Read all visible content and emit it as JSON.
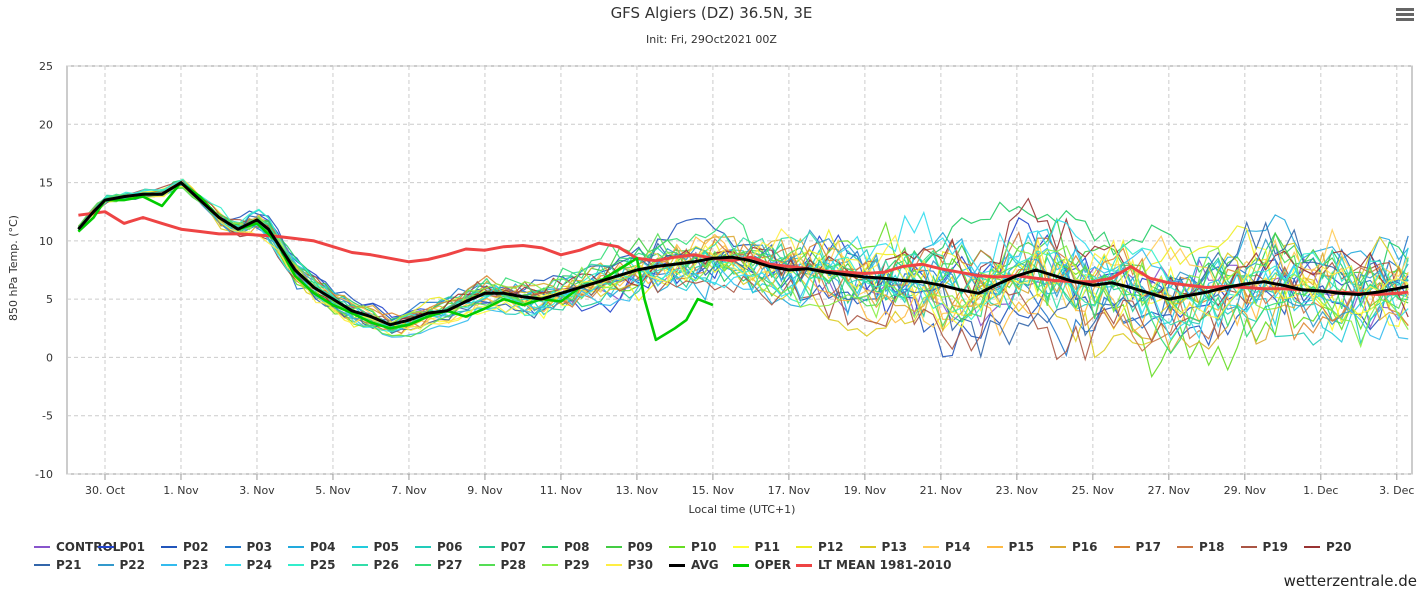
{
  "header": {
    "title": "GFS Algiers (DZ) 36.5N, 3E",
    "subtitle": "Init: Fri, 29Oct2021 00Z"
  },
  "menu_icon": "hamburger-menu-icon",
  "credit": "wetterzentrale.de",
  "colors": {
    "AVG": "#000000",
    "OPER": "#00cc00",
    "LT_MEAN": "#ee4444",
    "grid": "#cccccc"
  },
  "chart_data": {
    "type": "line",
    "xlabel": "Local time (UTC+1)",
    "ylabel": "850 hPa Temp. (°C)",
    "ylim": [
      -10,
      25
    ],
    "yticks": [
      -10,
      -5,
      0,
      5,
      10,
      15,
      20,
      25
    ],
    "xlim_days_from_oct29": [
      0.0,
      35.4
    ],
    "xticks": [
      {
        "label": "30. Oct",
        "day": 1
      },
      {
        "label": "1. Nov",
        "day": 3
      },
      {
        "label": "3. Nov",
        "day": 5
      },
      {
        "label": "5. Nov",
        "day": 7
      },
      {
        "label": "7. Nov",
        "day": 9
      },
      {
        "label": "9. Nov",
        "day": 11
      },
      {
        "label": "11. Nov",
        "day": 13
      },
      {
        "label": "13. Nov",
        "day": 15
      },
      {
        "label": "15. Nov",
        "day": 17
      },
      {
        "label": "17. Nov",
        "day": 19
      },
      {
        "label": "19. Nov",
        "day": 21
      },
      {
        "label": "21. Nov",
        "day": 23
      },
      {
        "label": "23. Nov",
        "day": 25
      },
      {
        "label": "25. Nov",
        "day": 27
      },
      {
        "label": "27. Nov",
        "day": 29
      },
      {
        "label": "29. Nov",
        "day": 31
      },
      {
        "label": "1. Dec",
        "day": 33
      },
      {
        "label": "3. Dec",
        "day": 35
      }
    ],
    "grid": true,
    "legend_position": "bottom",
    "series_highlight": [
      {
        "name": "AVG",
        "color": "#000000",
        "x": [
          0.3,
          0.7,
          1,
          1.5,
          2,
          2.5,
          3,
          3.5,
          4,
          4.5,
          5,
          5.3,
          5.7,
          6,
          6.5,
          7,
          7.5,
          8,
          8.5,
          9,
          9.5,
          10,
          10.5,
          11,
          11.5,
          12,
          12.5,
          13,
          13.5,
          14,
          14.5,
          15,
          15.5,
          16,
          16.5,
          17,
          17.5,
          18,
          18.5,
          19,
          19.5,
          20,
          20.5,
          21,
          21.5,
          22,
          22.5,
          23,
          23.5,
          24,
          24.5,
          25,
          25.5,
          26,
          26.5,
          27,
          27.5,
          28,
          28.5,
          29,
          29.5,
          30,
          30.5,
          31,
          31.5,
          32,
          32.5,
          33,
          33.5,
          34,
          34.5,
          35,
          35.3
        ],
        "y": [
          11,
          12.5,
          13.5,
          13.8,
          14,
          14,
          15,
          13.5,
          12,
          11,
          11.8,
          11,
          9,
          7.5,
          6,
          5,
          4,
          3.5,
          2.8,
          3.2,
          3.8,
          4,
          4.8,
          5.5,
          5.5,
          5.2,
          5,
          5.5,
          6,
          6.5,
          7,
          7.5,
          7.8,
          8,
          8.2,
          8.5,
          8.6,
          8.3,
          7.8,
          7.5,
          7.6,
          7.3,
          7.1,
          6.9,
          6.8,
          6.6,
          6.5,
          6.2,
          5.8,
          5.5,
          6.3,
          7,
          7.5,
          7,
          6.5,
          6.2,
          6.4,
          6,
          5.5,
          5,
          5.3,
          5.6,
          6,
          6.3,
          6.5,
          6.2,
          5.8,
          5.7,
          5.5,
          5.4,
          5.6,
          5.9,
          6.1
        ]
      },
      {
        "name": "OPER",
        "color": "#00cc00",
        "x": [
          0.3,
          0.7,
          1,
          1.5,
          2,
          2.5,
          3,
          3.5,
          4,
          4.5,
          5,
          5.5,
          6,
          6.5,
          7,
          7.5,
          8,
          8.5,
          9,
          9.5,
          10,
          10.5,
          11,
          11.5,
          12,
          12.5,
          13,
          13.5,
          14,
          14.5,
          15,
          15.2,
          15.5,
          16,
          16.3,
          16.6,
          17
        ],
        "y": [
          10.8,
          12,
          13.5,
          13.5,
          13.8,
          13,
          15,
          13.8,
          12,
          11,
          11.5,
          10,
          7,
          5.5,
          4.5,
          3.8,
          3,
          2.5,
          2.8,
          3.5,
          4,
          3.5,
          4.2,
          5,
          4.5,
          5,
          4.8,
          6,
          6.5,
          7.5,
          8.5,
          5,
          1.5,
          2.5,
          3.2,
          5,
          4.5
        ]
      },
      {
        "name": "LT MEAN 1981-2010",
        "color": "#ee4444",
        "x": [
          0.3,
          1,
          1.5,
          2,
          2.5,
          3,
          3.5,
          4,
          4.5,
          5,
          5.5,
          6,
          6.5,
          7,
          7.5,
          8,
          8.5,
          9,
          9.5,
          10,
          10.5,
          11,
          11.5,
          12,
          12.5,
          13,
          13.5,
          14,
          14.5,
          15,
          15.5,
          16,
          16.5,
          17,
          17.5,
          18,
          18.5,
          19,
          19.5,
          20,
          20.5,
          21,
          21.5,
          22,
          22.5,
          23,
          23.5,
          24,
          24.5,
          25,
          25.5,
          26,
          26.5,
          27,
          27.5,
          28,
          28.5,
          29,
          29.5,
          30,
          30.5,
          31,
          31.5,
          32,
          32.5,
          33,
          33.5,
          34,
          34.5,
          35,
          35.3
        ],
        "y": [
          12.2,
          12.5,
          11.5,
          12,
          11.5,
          11,
          10.8,
          10.6,
          10.6,
          10.5,
          10.4,
          10.2,
          10,
          9.5,
          9,
          8.8,
          8.5,
          8.2,
          8.4,
          8.8,
          9.3,
          9.2,
          9.5,
          9.6,
          9.4,
          8.8,
          9.2,
          9.8,
          9.5,
          8.5,
          8.3,
          8.6,
          8.8,
          8.5,
          8.3,
          8.6,
          8,
          7.8,
          7.6,
          7.4,
          7.3,
          7.2,
          7.3,
          7.8,
          8,
          7.6,
          7.3,
          7,
          6.9,
          7,
          6.8,
          6.6,
          6.5,
          6.5,
          6.8,
          7.8,
          6.8,
          6.4,
          6.2,
          6,
          6.1,
          6,
          5.9,
          5.9,
          5.8,
          5.7,
          5.6,
          5.5,
          5.4,
          5.5,
          5.6
        ]
      }
    ],
    "ensemble_members": [
      {
        "name": "CONTROL",
        "color": "#8855cc"
      },
      {
        "name": "P01",
        "color": "#2244cc"
      },
      {
        "name": "P02",
        "color": "#2255bb"
      },
      {
        "name": "P03",
        "color": "#2277cc"
      },
      {
        "name": "P04",
        "color": "#22aadd"
      },
      {
        "name": "P05",
        "color": "#22ccdd"
      },
      {
        "name": "P06",
        "color": "#22ccbb"
      },
      {
        "name": "P07",
        "color": "#22cc99"
      },
      {
        "name": "P08",
        "color": "#22cc66"
      },
      {
        "name": "P09",
        "color": "#44cc44"
      },
      {
        "name": "P10",
        "color": "#66dd22"
      },
      {
        "name": "P11",
        "color": "#ffff33"
      },
      {
        "name": "P12",
        "color": "#eeee22"
      },
      {
        "name": "P13",
        "color": "#ddcc22"
      },
      {
        "name": "P14",
        "color": "#ffcc55"
      },
      {
        "name": "P15",
        "color": "#ffbb44"
      },
      {
        "name": "P16",
        "color": "#ddaa33"
      },
      {
        "name": "P17",
        "color": "#dd8833"
      },
      {
        "name": "P18",
        "color": "#cc7744"
      },
      {
        "name": "P19",
        "color": "#aa5544"
      },
      {
        "name": "P20",
        "color": "#993333"
      },
      {
        "name": "P21",
        "color": "#3366aa"
      },
      {
        "name": "P22",
        "color": "#3399cc"
      },
      {
        "name": "P23",
        "color": "#33bbee"
      },
      {
        "name": "P24",
        "color": "#33ddee"
      },
      {
        "name": "P25",
        "color": "#33eecc"
      },
      {
        "name": "P26",
        "color": "#33ddaa"
      },
      {
        "name": "P27",
        "color": "#33dd77"
      },
      {
        "name": "P28",
        "color": "#55dd55"
      },
      {
        "name": "P29",
        "color": "#88ee44"
      },
      {
        "name": "P30",
        "color": "#ffee44"
      }
    ],
    "legend": [
      [
        "CONTROL",
        "P01",
        "P02",
        "P03",
        "P04",
        "P05",
        "P06",
        "P07",
        "P08",
        "P09",
        "P10",
        "P11",
        "P12",
        "P13",
        "P14",
        "P15",
        "P16",
        "P17",
        "P18",
        "P19",
        "P20"
      ],
      [
        "P21",
        "P22",
        "P23",
        "P24",
        "P25",
        "P26",
        "P27",
        "P28",
        "P29",
        "P30",
        "AVG",
        "OPER",
        "LT MEAN 1981-2010"
      ]
    ]
  }
}
